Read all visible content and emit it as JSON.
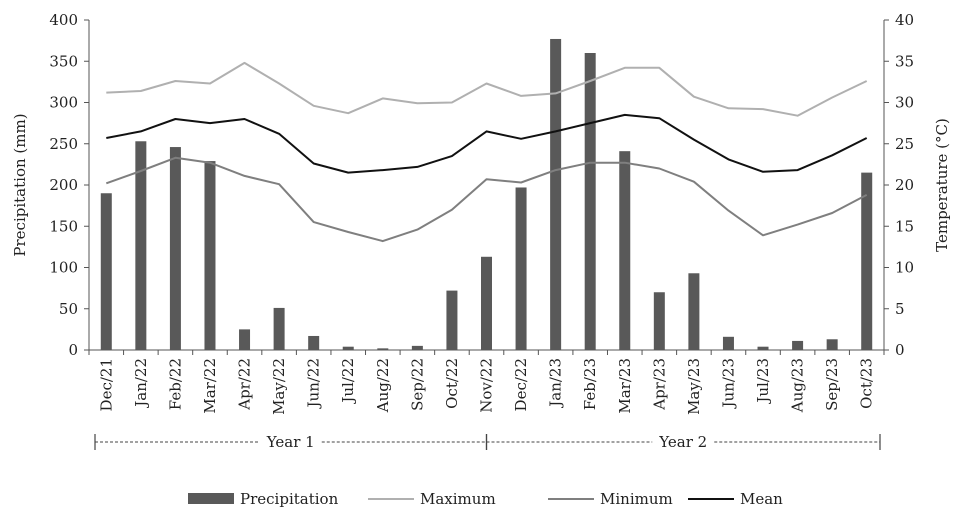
{
  "chart_data": {
    "type": "bar",
    "categories": [
      "Dec/21",
      "Jan/22",
      "Feb/22",
      "Mar/22",
      "Apr/22",
      "May/22",
      "Jun/22",
      "Jul/22",
      "Aug/22",
      "Sep/22",
      "Oct/22",
      "Nov/22",
      "Dec/22",
      "Jan/23",
      "Feb/23",
      "Mar/23",
      "Apr/23",
      "May/23",
      "Jun/23",
      "Jul/23",
      "Aug/23",
      "Sep/23",
      "Oct/23"
    ],
    "ylabel": "Precipitation (mm)",
    "y2label": "Temperature (°C)",
    "ylim": [
      0,
      400
    ],
    "y2lim": [
      0,
      40
    ],
    "yticks": [
      "0",
      "50",
      "100",
      "150",
      "200",
      "250",
      "300",
      "350",
      "400"
    ],
    "y2ticks": [
      "0",
      "5",
      "10",
      "15",
      "20",
      "25",
      "30",
      "35",
      "40"
    ],
    "grid": false,
    "legend_position": "bottom",
    "series": [
      {
        "name": "Precipitation",
        "type": "bar",
        "axis": "left",
        "color": "#595959",
        "values": [
          190,
          253,
          246,
          229,
          25,
          51,
          17,
          4,
          2,
          5,
          72,
          113,
          197,
          377,
          360,
          241,
          70,
          93,
          16,
          4,
          11,
          13,
          215
        ]
      },
      {
        "name": "Maximum",
        "type": "line",
        "axis": "right",
        "color": "#b0b0b0",
        "values": [
          31.2,
          31.4,
          32.6,
          32.3,
          34.8,
          32.3,
          29.6,
          28.7,
          30.5,
          29.9,
          30.0,
          32.3,
          30.8,
          31.1,
          32.6,
          34.2,
          34.2,
          30.7,
          29.3,
          29.2,
          28.4,
          30.6,
          32.6
        ]
      },
      {
        "name": "Minimum",
        "type": "line",
        "axis": "right",
        "color": "#7f7f7f",
        "values": [
          20.2,
          21.7,
          23.3,
          22.7,
          21.1,
          20.1,
          15.5,
          14.3,
          13.2,
          14.6,
          17.0,
          20.7,
          20.3,
          21.8,
          22.7,
          22.7,
          22.0,
          20.4,
          16.9,
          13.9,
          15.2,
          16.6,
          18.8
        ]
      },
      {
        "name": "Mean",
        "type": "line",
        "axis": "right",
        "color": "#111111",
        "values": [
          25.7,
          26.5,
          28.0,
          27.5,
          28.0,
          26.2,
          22.6,
          21.5,
          21.8,
          22.2,
          23.5,
          26.5,
          25.6,
          26.5,
          27.5,
          28.5,
          28.1,
          25.5,
          23.1,
          21.6,
          21.8,
          23.6,
          25.7
        ]
      }
    ],
    "period_labels": [
      {
        "label": "Year 1",
        "from": 0,
        "to": 11
      },
      {
        "label": "Year 2",
        "from": 11,
        "to": 22
      }
    ]
  }
}
